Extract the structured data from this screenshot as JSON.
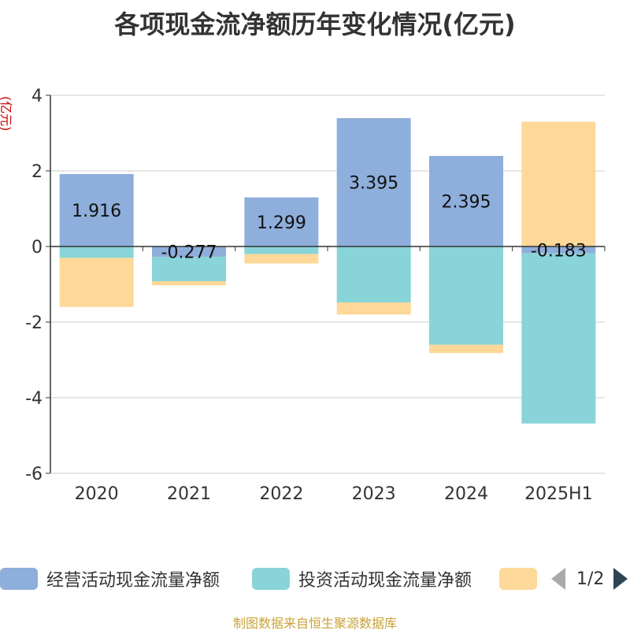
{
  "chart_data": {
    "type": "bar",
    "stacked": true,
    "title": "各项现金流净额历年变化情况(亿元)",
    "ylabel": "(亿元)",
    "xlabel": "",
    "ylim": [
      -6,
      4
    ],
    "yticks": [
      -6,
      -4,
      -2,
      0,
      2,
      4
    ],
    "grid": true,
    "categories": [
      "2020",
      "2021",
      "2022",
      "2023",
      "2024",
      "2025H1"
    ],
    "series": [
      {
        "name": "经营活动现金流量净额",
        "color": "#8eaedb",
        "values": [
          1.916,
          -0.277,
          1.299,
          3.395,
          2.395,
          -0.183
        ]
      },
      {
        "name": "投资活动现金流量净额",
        "color": "#88d4d8",
        "values": [
          -0.3,
          -0.64,
          -0.2,
          -1.48,
          -2.6,
          -4.5
        ]
      },
      {
        "name": "",
        "color": "#fed898",
        "values": [
          -1.3,
          -0.11,
          -0.25,
          -0.32,
          -0.22,
          3.3
        ]
      }
    ],
    "data_labels": [
      "1.916",
      "-0.277",
      "1.299",
      "3.395",
      "2.395",
      "-0.183"
    ],
    "legend_position": "bottom"
  },
  "legend": {
    "items": [
      "经营活动现金流量净额",
      "投资活动现金流量净额",
      ""
    ],
    "page_text": "1/2"
  },
  "source_note": "制图数据来自恒生聚源数据库"
}
